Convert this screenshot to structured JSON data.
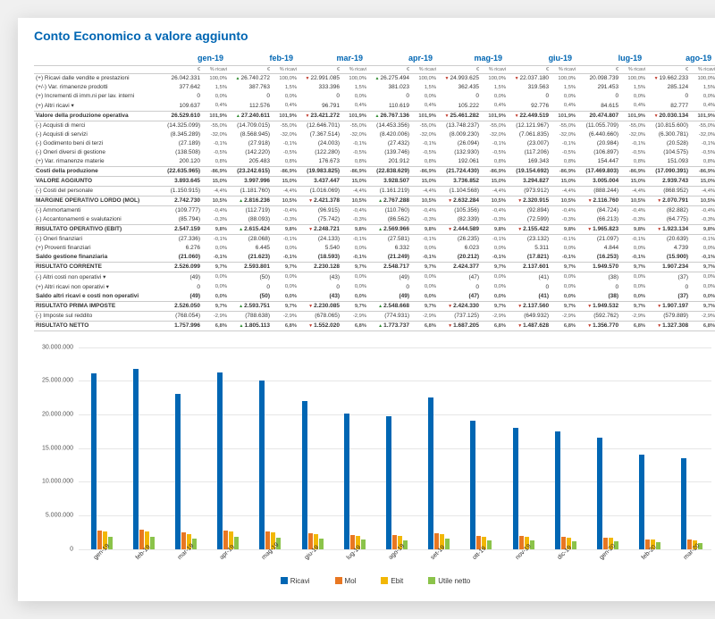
{
  "title": "Conto Economico a valore aggiunto",
  "months": [
    "gen-19",
    "feb-19",
    "mar-19",
    "apr-19",
    "mag-19",
    "giu-19",
    "lug-19",
    "ago-19"
  ],
  "subcols": [
    "€",
    "% ricavi"
  ],
  "rows": [
    {
      "label": "(+) Ricavi dalle vendite e prestazioni",
      "vals": [
        "26.042.331",
        "100,0%",
        "26.740.272",
        "100,0%",
        "22.991.085",
        "100,0%",
        "26.275.494",
        "100,0%",
        "24.993.625",
        "100,0%",
        "22.037.180",
        "100,0%",
        "20.098.739",
        "100,0%",
        "19.662.233",
        "100,0%"
      ],
      "indicator": [
        null,
        "up",
        "down",
        "up",
        "down",
        "down",
        null,
        "down"
      ]
    },
    {
      "label": "(+/-) Var. rimanenze prodotti",
      "vals": [
        "377.642",
        "1,5%",
        "387.763",
        "1,5%",
        "333.396",
        "1,5%",
        "381.023",
        "1,5%",
        "362.435",
        "1,5%",
        "319.563",
        "1,5%",
        "291.453",
        "1,5%",
        "285.124",
        "1,5%"
      ]
    },
    {
      "label": "(+) Incrementi di imm.ni per lav. interni",
      "vals": [
        "0",
        "0,0%",
        "0",
        "0,0%",
        "0",
        "0,0%",
        "0",
        "0,0%",
        "0",
        "0,0%",
        "0",
        "0,0%",
        "0",
        "0,0%",
        "0",
        "0,0%"
      ]
    },
    {
      "label": "(+) Altri ricavi",
      "vals": [
        "109.637",
        "0,4%",
        "112.576",
        "0,4%",
        "96.791",
        "0,4%",
        "110.619",
        "0,4%",
        "105.222",
        "0,4%",
        "92.776",
        "0,4%",
        "84.615",
        "0,4%",
        "82.777",
        "0,4%"
      ],
      "blue": true,
      "expand": true
    },
    {
      "label": "Valore della produzione operativa",
      "bold": true,
      "header": true,
      "vals": [
        "26.529.610",
        "101,9%",
        "27.240.611",
        "101,9%",
        "23.421.272",
        "101,9%",
        "26.767.136",
        "101,9%",
        "25.461.282",
        "101,9%",
        "22.449.519",
        "101,9%",
        "20.474.807",
        "101,9%",
        "20.030.134",
        "101,9%"
      ],
      "indicator": [
        null,
        "up",
        "down",
        "up",
        "down",
        "down",
        null,
        "down"
      ]
    },
    {
      "label": "(-) Acquisti di merci",
      "vals": [
        "(14.325.099)",
        "-55,0%",
        "(14.709.015)",
        "-55,0%",
        "(12.646.701)",
        "-55,0%",
        "(14.453.356)",
        "-55,0%",
        "(13.748.237)",
        "-55,0%",
        "(12.121.967)",
        "-55,0%",
        "(11.055.709)",
        "-55,0%",
        "(10.815.600)",
        "-55,0%"
      ]
    },
    {
      "label": "(-) Acquisti di servizi",
      "vals": [
        "(8.345.289)",
        "-32,0%",
        "(8.568.945)",
        "-32,0%",
        "(7.367.514)",
        "-32,0%",
        "(8.420.006)",
        "-32,0%",
        "(8.009.230)",
        "-32,0%",
        "(7.061.835)",
        "-32,0%",
        "(6.440.660)",
        "-32,0%",
        "(6.300.781)",
        "-32,0%"
      ]
    },
    {
      "label": "(-) Godimento beni di terzi",
      "vals": [
        "(27.189)",
        "-0,1%",
        "(27.918)",
        "-0,1%",
        "(24.003)",
        "-0,1%",
        "(27.432)",
        "-0,1%",
        "(26.094)",
        "-0,1%",
        "(23.007)",
        "-0,1%",
        "(20.984)",
        "-0,1%",
        "(20.528)",
        "-0,1%"
      ]
    },
    {
      "label": "(-) Oneri diversi di gestione",
      "vals": [
        "(138.508)",
        "-0,5%",
        "(142.220)",
        "-0,5%",
        "(122.280)",
        "-0,5%",
        "(139.746)",
        "-0,5%",
        "(132.930)",
        "-0,5%",
        "(117.206)",
        "-0,5%",
        "(106.897)",
        "-0,5%",
        "(104.575)",
        "-0,5%"
      ]
    },
    {
      "label": "(+) Var. rimanenze materie",
      "vals": [
        "200.120",
        "0,8%",
        "205.483",
        "0,8%",
        "176.673",
        "0,8%",
        "201.912",
        "0,8%",
        "192.061",
        "0,8%",
        "169.343",
        "0,8%",
        "154.447",
        "0,8%",
        "151.093",
        "0,8%"
      ]
    },
    {
      "label": "Costi della produzione",
      "bold": true,
      "header": true,
      "vals": [
        "(22.635.965)",
        "-86,9%",
        "(23.242.615)",
        "-86,9%",
        "(19.983.825)",
        "-86,9%",
        "(22.838.629)",
        "-86,9%",
        "(21.724.430)",
        "-86,9%",
        "(19.154.692)",
        "-86,9%",
        "(17.469.803)",
        "-86,9%",
        "(17.090.391)",
        "-86,9%"
      ]
    },
    {
      "label": "VALORE AGGIUNTO",
      "bold": true,
      "header": true,
      "vals": [
        "3.893.645",
        "15,0%",
        "3.997.996",
        "15,0%",
        "3.437.447",
        "15,0%",
        "3.928.507",
        "15,0%",
        "3.736.852",
        "15,0%",
        "3.294.827",
        "15,0%",
        "3.005.004",
        "15,0%",
        "2.939.743",
        "15,0%"
      ]
    },
    {
      "label": "(-) Costi del personale",
      "vals": [
        "(1.150.915)",
        "-4,4%",
        "(1.181.760)",
        "-4,4%",
        "(1.016.069)",
        "-4,4%",
        "(1.161.219)",
        "-4,4%",
        "(1.104.568)",
        "-4,4%",
        "(973.912)",
        "-4,4%",
        "(888.244)",
        "-4,4%",
        "(868.952)",
        "-4,4%"
      ],
      "blue": true
    },
    {
      "label": "MARGINE OPERATIVO LORDO (MOL)",
      "bold": true,
      "header": true,
      "vals": [
        "2.742.730",
        "10,5%",
        "2.816.236",
        "10,5%",
        "2.421.378",
        "10,5%",
        "2.767.288",
        "10,5%",
        "2.632.284",
        "10,5%",
        "2.320.915",
        "10,5%",
        "2.116.760",
        "10,5%",
        "2.070.791",
        "10,5%"
      ],
      "indicator": [
        null,
        "up",
        "down",
        "up",
        "down",
        "down",
        "down",
        "down"
      ]
    },
    {
      "label": "(-) Ammortamenti",
      "vals": [
        "(109.777)",
        "-0,4%",
        "(112.719)",
        "-0,4%",
        "(96.915)",
        "-0,4%",
        "(110.760)",
        "-0,4%",
        "(105.356)",
        "-0,4%",
        "(92.894)",
        "-0,4%",
        "(84.724)",
        "-0,4%",
        "(82.882)",
        "-0,4%"
      ],
      "blue": true
    },
    {
      "label": "(-) Accantonamenti e svalutazioni",
      "vals": [
        "(85.794)",
        "-0,3%",
        "(88.093)",
        "-0,3%",
        "(75.742)",
        "-0,3%",
        "(86.562)",
        "-0,3%",
        "(82.339)",
        "-0,3%",
        "(72.599)",
        "-0,3%",
        "(66.213)",
        "-0,3%",
        "(64.775)",
        "-0,3%"
      ]
    },
    {
      "label": "RISULTATO OPERATIVO (EBIT)",
      "bold": true,
      "header": true,
      "vals": [
        "2.547.159",
        "9,8%",
        "2.615.424",
        "9,8%",
        "2.248.721",
        "9,8%",
        "2.569.966",
        "9,8%",
        "2.444.589",
        "9,8%",
        "2.155.422",
        "9,8%",
        "1.965.823",
        "9,8%",
        "1.923.134",
        "9,8%"
      ],
      "indicator": [
        null,
        "up",
        "down",
        "up",
        "down",
        "down",
        "down",
        "down"
      ]
    },
    {
      "label": "(-) Oneri finanziari",
      "vals": [
        "(27.336)",
        "-0,1%",
        "(28.068)",
        "-0,1%",
        "(24.133)",
        "-0,1%",
        "(27.581)",
        "-0,1%",
        "(26.235)",
        "-0,1%",
        "(23.132)",
        "-0,1%",
        "(21.097)",
        "-0,1%",
        "(20.639)",
        "-0,1%"
      ]
    },
    {
      "label": "(+) Proventi finanziari",
      "vals": [
        "6.276",
        "0,0%",
        "6.445",
        "0,0%",
        "5.540",
        "0,0%",
        "6.332",
        "0,0%",
        "6.023",
        "0,0%",
        "5.311",
        "0,0%",
        "4.844",
        "0,0%",
        "4.739",
        "0,0%"
      ]
    },
    {
      "label": "Saldo gestione finanziaria",
      "bold": true,
      "vals": [
        "(21.060)",
        "-0,1%",
        "(21.623)",
        "-0,1%",
        "(18.593)",
        "-0,1%",
        "(21.249)",
        "-0,1%",
        "(20.212)",
        "-0,1%",
        "(17.821)",
        "-0,1%",
        "(16.253)",
        "-0,1%",
        "(15.900)",
        "-0,1%"
      ]
    },
    {
      "label": "RISULTATO CORRENTE",
      "bold": true,
      "header": true,
      "vals": [
        "2.526.099",
        "9,7%",
        "2.593.801",
        "9,7%",
        "2.230.128",
        "9,7%",
        "2.548.717",
        "9,7%",
        "2.424.377",
        "9,7%",
        "2.137.601",
        "9,7%",
        "1.949.570",
        "9,7%",
        "1.907.234",
        "9,7%"
      ]
    },
    {
      "label": "(-) Altri costi non operativi",
      "vals": [
        "(49)",
        "0,0%",
        "(50)",
        "0,0%",
        "(43)",
        "0,0%",
        "(49)",
        "0,0%",
        "(47)",
        "0,0%",
        "(41)",
        "0,0%",
        "(38)",
        "0,0%",
        "(37)",
        "0,0%"
      ],
      "blue": true,
      "expand": true
    },
    {
      "label": "(+) Altri ricavi non operativi",
      "vals": [
        "0",
        "0,0%",
        "0",
        "0,0%",
        "0",
        "0,0%",
        "0",
        "0,0%",
        "0",
        "0,0%",
        "0",
        "0,0%",
        "0",
        "0,0%",
        "0",
        "0,0%"
      ],
      "blue": true,
      "expand": true
    },
    {
      "label": "Saldo altri ricavi e costi non operativi",
      "bold": true,
      "vals": [
        "(49)",
        "0,0%",
        "(50)",
        "0,0%",
        "(43)",
        "0,0%",
        "(49)",
        "0,0%",
        "(47)",
        "0,0%",
        "(41)",
        "0,0%",
        "(38)",
        "0,0%",
        "(37)",
        "0,0%"
      ]
    },
    {
      "label": "RISULTATO PRIMA IMPOSTE",
      "bold": true,
      "header": true,
      "vals": [
        "2.526.050",
        "9,7%",
        "2.593.751",
        "9,7%",
        "2.230.085",
        "9,7%",
        "2.548.668",
        "9,7%",
        "2.424.330",
        "9,7%",
        "2.137.560",
        "9,7%",
        "1.949.532",
        "9,7%",
        "1.907.197",
        "9,7%"
      ],
      "indicator": [
        null,
        "up",
        "down",
        "up",
        "down",
        "down",
        "down",
        "down"
      ]
    },
    {
      "label": "(-) Imposte sul reddito",
      "vals": [
        "(768.054)",
        "-2,9%",
        "(788.638)",
        "-2,9%",
        "(678.065)",
        "-2,9%",
        "(774.931)",
        "-2,9%",
        "(737.125)",
        "-2,9%",
        "(649.932)",
        "-2,9%",
        "(592.762)",
        "-2,9%",
        "(579.889)",
        "-2,9%"
      ]
    },
    {
      "label": "RISULTATO NETTO",
      "bold": true,
      "header": true,
      "vals": [
        "1.757.996",
        "6,8%",
        "1.805.113",
        "6,8%",
        "1.552.020",
        "6,8%",
        "1.773.737",
        "6,8%",
        "1.687.205",
        "6,8%",
        "1.487.628",
        "6,8%",
        "1.356.770",
        "6,8%",
        "1.327.308",
        "6,8%"
      ],
      "indicator": [
        null,
        "up",
        "down",
        "up",
        "down",
        "down",
        "down",
        "down"
      ]
    }
  ],
  "chart": {
    "ymax": 30000000,
    "ytick_step": 5000000,
    "yticks": [
      "0",
      "5.000.000",
      "10.000.000",
      "15.000.000",
      "20.000.000",
      "25.000.000",
      "30.000.000"
    ],
    "categories": [
      "gen-19",
      "feb-19",
      "mar-19",
      "apr-19",
      "mag-19",
      "giu-19",
      "lug-19",
      "ago-19",
      "set-19",
      "ott-19",
      "nov-19",
      "dic-19",
      "gen-20",
      "feb-20",
      "mar-20"
    ],
    "series": {
      "ricavi": {
        "label": "Ricavi",
        "color": "#0066b3",
        "values": [
          26042331,
          26740272,
          22991085,
          26275494,
          24993625,
          22037180,
          20098739,
          19662233,
          22500000,
          19000000,
          18000000,
          17500000,
          16500000,
          14000000,
          13500000
        ]
      },
      "mol": {
        "label": "Mol",
        "color": "#e87722",
        "values": [
          2742730,
          2816236,
          2421378,
          2767288,
          2632284,
          2320915,
          2116760,
          2070791,
          2350000,
          1980000,
          1880000,
          1820000,
          1720000,
          1460000,
          1410000
        ]
      },
      "ebit": {
        "label": "Ebit",
        "color": "#f2b705",
        "values": [
          2547159,
          2615424,
          2248721,
          2569966,
          2444589,
          2155422,
          1965823,
          1923134,
          2180000,
          1840000,
          1745000,
          1690000,
          1595000,
          1355000,
          1310000
        ]
      },
      "utile": {
        "label": "Utile netto",
        "color": "#8bc34a",
        "values": [
          1757996,
          1805113,
          1552020,
          1773737,
          1687205,
          1487628,
          1356770,
          1327308,
          1505000,
          1270000,
          1205000,
          1167000,
          1102000,
          936000,
          904000
        ]
      }
    }
  },
  "colors": {
    "up": "#2e8b2e",
    "down": "#c0392b"
  }
}
